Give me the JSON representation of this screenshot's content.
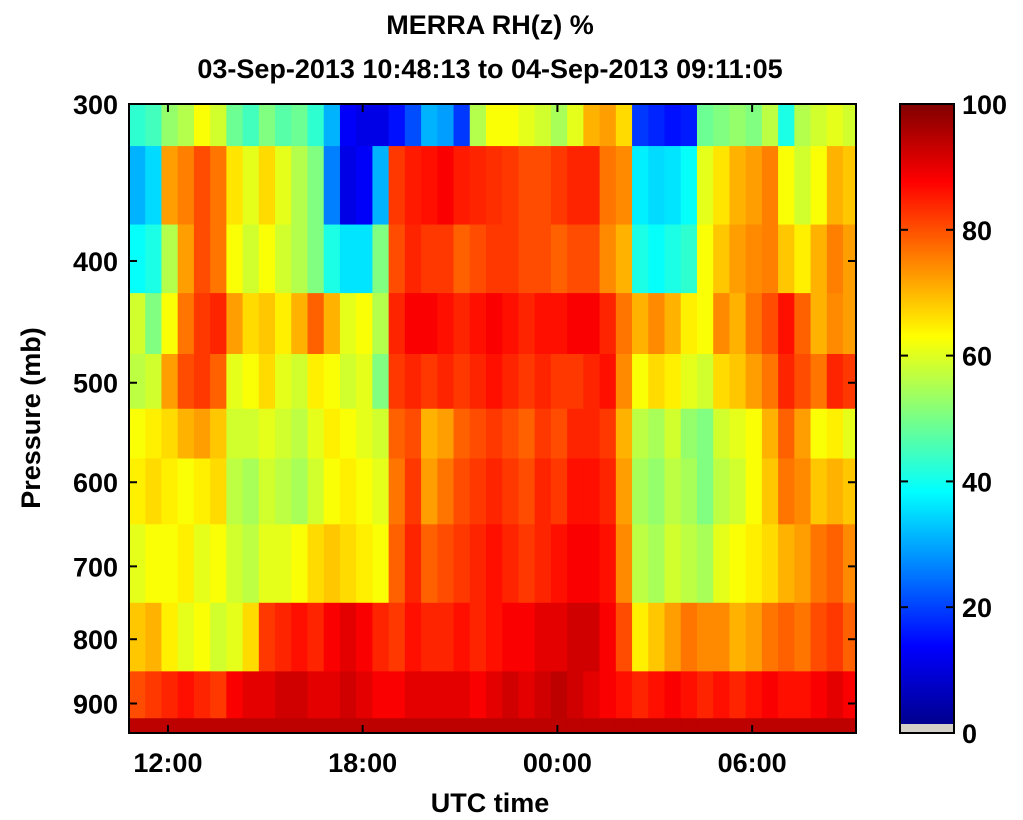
{
  "chart_data": {
    "type": "heatmap",
    "title": "MERRA RH(z) %",
    "subtitle": "03-Sep-2013 10:48:13 to 04-Sep-2013 09:11:05",
    "xlabel": "UTC time",
    "ylabel": "Pressure (mb)",
    "x_tick_labels": [
      "12:00",
      "18:00",
      "00:00",
      "06:00"
    ],
    "x_tick_hours": [
      12,
      18,
      24,
      30
    ],
    "xlim_hours": [
      10.8,
      33.2
    ],
    "y_tick_labels": [
      "300",
      "400",
      "500",
      "600",
      "700",
      "800",
      "900"
    ],
    "y_ticks": [
      300,
      400,
      500,
      600,
      700,
      800,
      900
    ],
    "ylim": [
      300,
      950
    ],
    "y_scale": "log",
    "y_reversed": true,
    "colorbar": {
      "label": "",
      "tick_labels": [
        "0",
        "20",
        "40",
        "60",
        "80",
        "100"
      ],
      "ticks": [
        0,
        20,
        40,
        60,
        80,
        100
      ],
      "range": [
        0,
        100
      ],
      "colormap": "jet",
      "missing_color": "#d4d0c8"
    },
    "pressure_levels": [
      300,
      350,
      400,
      450,
      500,
      550,
      600,
      700,
      800,
      900,
      950
    ],
    "time_hours": [
      10.8,
      11.3,
      11.8,
      12.3,
      12.8,
      13.3,
      13.8,
      14.3,
      14.8,
      15.3,
      15.8,
      16.3,
      16.8,
      17.3,
      17.8,
      18.3,
      18.8,
      19.3,
      19.8,
      20.3,
      20.8,
      21.3,
      21.8,
      22.3,
      22.8,
      23.3,
      23.8,
      24.3,
      24.8,
      25.3,
      25.8,
      26.3,
      26.8,
      27.3,
      27.8,
      28.3,
      28.8,
      29.3,
      29.8,
      30.3,
      30.8,
      31.3,
      31.8,
      32.3,
      32.8
    ],
    "rh_percent": [
      [
        42,
        44,
        52,
        55,
        62,
        58,
        48,
        44,
        50,
        46,
        48,
        42,
        30,
        12,
        10,
        10,
        14,
        20,
        30,
        28,
        18,
        55,
        62,
        62,
        60,
        58,
        54,
        60,
        70,
        72,
        66,
        18,
        16,
        14,
        15,
        48,
        50,
        52,
        50,
        56,
        40,
        55,
        58,
        60,
        58
      ],
      [
        30,
        34,
        72,
        75,
        80,
        76,
        65,
        60,
        66,
        60,
        55,
        50,
        25,
        10,
        12,
        30,
        82,
        85,
        86,
        88,
        85,
        84,
        83,
        82,
        80,
        80,
        82,
        84,
        84,
        76,
        74,
        36,
        34,
        35,
        38,
        60,
        65,
        70,
        72,
        75,
        62,
        58,
        62,
        70,
        68
      ],
      [
        38,
        40,
        55,
        72,
        80,
        76,
        62,
        58,
        62,
        58,
        55,
        50,
        40,
        35,
        35,
        50,
        80,
        84,
        82,
        82,
        78,
        80,
        82,
        82,
        80,
        80,
        78,
        80,
        80,
        74,
        70,
        40,
        38,
        40,
        42,
        62,
        68,
        72,
        74,
        75,
        68,
        64,
        70,
        75,
        72
      ],
      [
        58,
        50,
        62,
        76,
        82,
        84,
        72,
        66,
        68,
        64,
        70,
        78,
        70,
        60,
        62,
        55,
        84,
        88,
        88,
        86,
        84,
        86,
        88,
        86,
        84,
        86,
        86,
        88,
        88,
        84,
        76,
        70,
        74,
        70,
        64,
        62,
        74,
        70,
        76,
        80,
        86,
        78,
        70,
        74,
        72
      ],
      [
        56,
        58,
        72,
        80,
        82,
        78,
        60,
        62,
        66,
        60,
        58,
        64,
        62,
        58,
        60,
        50,
        82,
        84,
        82,
        84,
        82,
        84,
        86,
        84,
        82,
        84,
        82,
        82,
        84,
        86,
        74,
        62,
        66,
        64,
        60,
        58,
        66,
        68,
        72,
        76,
        84,
        80,
        76,
        84,
        82
      ],
      [
        62,
        64,
        66,
        70,
        72,
        68,
        58,
        58,
        60,
        58,
        56,
        60,
        64,
        62,
        60,
        58,
        78,
        80,
        70,
        72,
        78,
        80,
        82,
        80,
        78,
        82,
        80,
        84,
        84,
        82,
        70,
        56,
        54,
        58,
        52,
        50,
        58,
        60,
        62,
        70,
        78,
        72,
        62,
        64,
        60
      ],
      [
        64,
        66,
        64,
        62,
        64,
        66,
        56,
        54,
        58,
        56,
        54,
        58,
        62,
        64,
        62,
        60,
        76,
        82,
        72,
        76,
        80,
        82,
        84,
        82,
        80,
        84,
        82,
        86,
        86,
        84,
        72,
        54,
        52,
        56,
        54,
        50,
        56,
        58,
        62,
        68,
        76,
        74,
        68,
        70,
        68
      ],
      [
        60,
        62,
        62,
        64,
        60,
        62,
        58,
        56,
        60,
        60,
        62,
        66,
        68,
        66,
        64,
        62,
        78,
        84,
        78,
        80,
        82,
        84,
        86,
        84,
        82,
        84,
        86,
        88,
        88,
        86,
        74,
        56,
        54,
        58,
        56,
        54,
        60,
        62,
        64,
        66,
        70,
        72,
        76,
        78,
        74
      ],
      [
        68,
        70,
        64,
        60,
        62,
        58,
        60,
        66,
        82,
        84,
        86,
        84,
        88,
        90,
        88,
        84,
        82,
        86,
        84,
        84,
        86,
        84,
        86,
        88,
        88,
        90,
        90,
        92,
        92,
        88,
        80,
        64,
        68,
        72,
        76,
        74,
        74,
        70,
        72,
        76,
        78,
        76,
        80,
        82,
        78
      ],
      [
        80,
        82,
        84,
        86,
        84,
        82,
        88,
        90,
        90,
        92,
        92,
        90,
        90,
        92,
        90,
        88,
        88,
        90,
        90,
        90,
        90,
        88,
        90,
        92,
        90,
        92,
        94,
        92,
        90,
        88,
        86,
        84,
        86,
        88,
        86,
        84,
        86,
        84,
        86,
        88,
        86,
        86,
        88,
        90,
        88
      ],
      [
        94,
        94,
        94,
        94,
        94,
        94,
        94,
        94,
        94,
        94,
        94,
        94,
        94,
        94,
        94,
        94,
        94,
        94,
        94,
        94,
        94,
        94,
        94,
        94,
        94,
        94,
        94,
        94,
        94,
        94,
        94,
        94,
        94,
        94,
        94,
        94,
        94,
        94,
        94,
        94,
        94,
        94,
        94,
        94,
        94
      ]
    ]
  }
}
